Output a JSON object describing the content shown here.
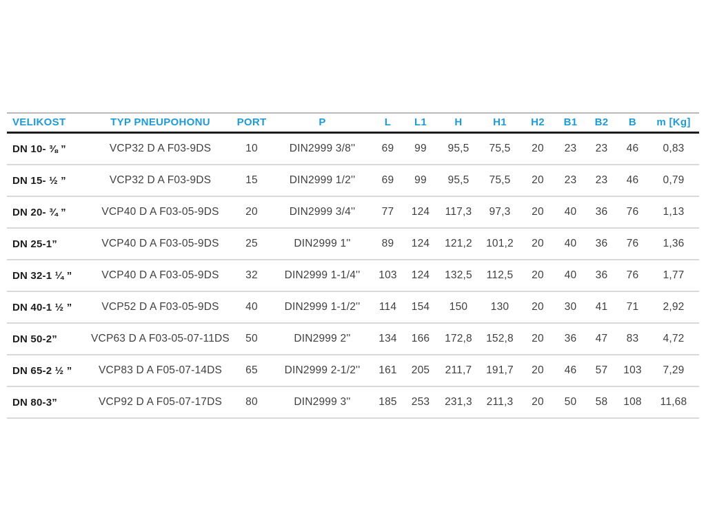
{
  "page": {
    "background_color": "#ffffff",
    "accent_color": "#1e9bd6",
    "header_rule_color": "#1c1c1c",
    "row_rule_color": "#d9d9d9"
  },
  "table": {
    "columns": [
      {
        "id": "velikost",
        "label": "VELIKOST",
        "align": "left"
      },
      {
        "id": "typ-pneupohonu",
        "label": "TYP PNEUPOHONU",
        "align": "center"
      },
      {
        "id": "port",
        "label": "PORT",
        "align": "center"
      },
      {
        "id": "p",
        "label": "P",
        "align": "center"
      },
      {
        "id": "l",
        "label": "L",
        "align": "center"
      },
      {
        "id": "l1",
        "label": "L1",
        "align": "center"
      },
      {
        "id": "h",
        "label": "H",
        "align": "center"
      },
      {
        "id": "h1",
        "label": "H1",
        "align": "center"
      },
      {
        "id": "h2",
        "label": "H2",
        "align": "center"
      },
      {
        "id": "b1",
        "label": "B1",
        "align": "center"
      },
      {
        "id": "b2",
        "label": "B2",
        "align": "center"
      },
      {
        "id": "b",
        "label": "B",
        "align": "center"
      },
      {
        "id": "m-kg",
        "label": "m [Kg]",
        "align": "center"
      }
    ],
    "rows": [
      [
        "DN 10- ⅜ ”",
        "VCP32 D A F03-9DS",
        "10",
        "DIN2999 3/8''",
        "69",
        "99",
        "95,5",
        "75,5",
        "20",
        "23",
        "23",
        "46",
        "0,83"
      ],
      [
        "DN 15- ½ ”",
        "VCP32 D A F03-9DS",
        "15",
        "DIN2999 1/2''",
        "69",
        "99",
        "95,5",
        "75,5",
        "20",
        "23",
        "23",
        "46",
        "0,79"
      ],
      [
        "DN 20- ¾ ”",
        "VCP40 D A F03-05-9DS",
        "20",
        "DIN2999 3/4''",
        "77",
        "124",
        "117,3",
        "97,3",
        "20",
        "40",
        "36",
        "76",
        "1,13"
      ],
      [
        "DN 25-1”",
        "VCP40 D A F03-05-9DS",
        "25",
        "DIN2999 1''",
        "89",
        "124",
        "121,2",
        "101,2",
        "20",
        "40",
        "36",
        "76",
        "1,36"
      ],
      [
        "DN 32-1 ¼ ”",
        "VCP40 D A F03-05-9DS",
        "32",
        "DIN2999 1-1/4''",
        "103",
        "124",
        "132,5",
        "112,5",
        "20",
        "40",
        "36",
        "76",
        "1,77"
      ],
      [
        "DN 40-1 ½ ”",
        "VCP52 D A F03-05-9DS",
        "40",
        "DIN2999 1-1/2''",
        "114",
        "154",
        "150",
        "130",
        "20",
        "30",
        "41",
        "71",
        "2,92"
      ],
      [
        "DN 50-2”",
        "VCP63 D A F03-05-07-11DS",
        "50",
        "DIN2999 2''",
        "134",
        "166",
        "172,8",
        "152,8",
        "20",
        "36",
        "47",
        "83",
        "4,72"
      ],
      [
        "DN 65-2 ½ ”",
        "VCP83 D A F05-07-14DS",
        "65",
        "DIN2999 2-1/2''",
        "161",
        "205",
        "211,7",
        "191,7",
        "20",
        "46",
        "57",
        "103",
        "7,29"
      ],
      [
        "DN 80-3”",
        "VCP92 D A F05-07-17DS",
        "80",
        "DIN2999 3''",
        "185",
        "253",
        "231,3",
        "211,3",
        "20",
        "50",
        "58",
        "108",
        "11,68"
      ]
    ]
  }
}
